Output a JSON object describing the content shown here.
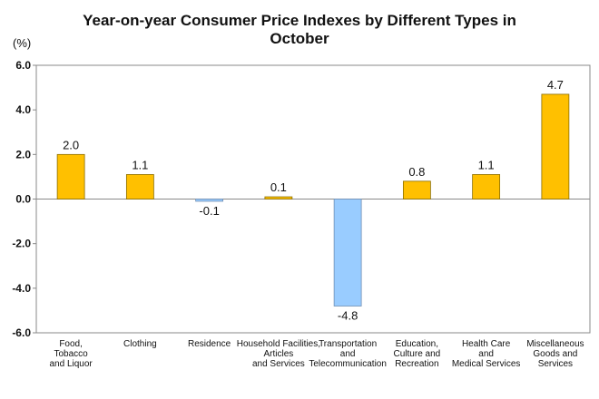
{
  "chart_data": {
    "type": "bar",
    "title_line1": "Year-on-year Consumer Price Indexes by Different Types in",
    "title_line2": "October",
    "unit_label": "(%)",
    "ylim": [
      -6.0,
      6.0
    ],
    "yticks": [
      "6.0",
      "4.0",
      "2.0",
      "0.0",
      "-2.0",
      "-4.0",
      "-6.0"
    ],
    "ytick_values": [
      6,
      4,
      2,
      0,
      -2,
      -4,
      -6
    ],
    "categories": [
      [
        "Food,",
        "Tobacco",
        "and Liquor"
      ],
      [
        "Clothing"
      ],
      [
        "Residence"
      ],
      [
        "Household Facilities,",
        "Articles",
        "and Services"
      ],
      [
        "Transportation",
        "and",
        "Telecommunication"
      ],
      [
        "Education,",
        "Culture and",
        "Recreation"
      ],
      [
        "Health Care",
        "and",
        "Medical Services"
      ],
      [
        "Miscellaneous",
        "Goods and",
        "Services"
      ]
    ],
    "values": [
      2.0,
      1.1,
      -0.1,
      0.1,
      -4.8,
      0.8,
      1.1,
      4.7
    ],
    "value_labels": [
      "2.0",
      "1.1",
      "-0.1",
      "0.1",
      "-4.8",
      "0.8",
      "1.1",
      "4.7"
    ],
    "colors": {
      "positive": "#FFC000",
      "positive_edge": "#8a6d00",
      "negative": "#99CCFF",
      "negative_edge": "#6f8fb3",
      "axis": "#888888"
    },
    "grid": false,
    "legend": "none"
  }
}
